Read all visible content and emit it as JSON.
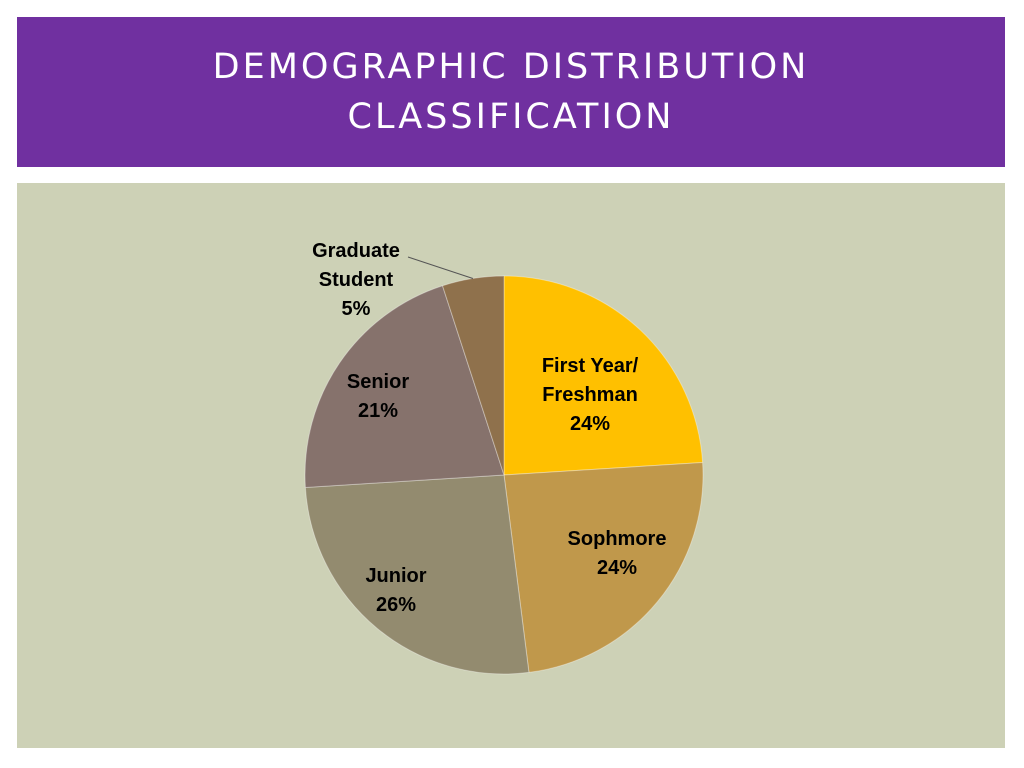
{
  "slide": {
    "title_line1": "DEMOGRAPHIC DISTRIBUTION",
    "title_line2": "CLASSIFICATION"
  },
  "colors": {
    "title_bg": "#7030A0",
    "panel_bg": "#CDD1B6"
  },
  "chart_data": {
    "type": "pie",
    "title": "",
    "slices": [
      {
        "label_lines": [
          "First Year/",
          "Freshman"
        ],
        "value": 24,
        "pct_text": "24%",
        "color": "#FFC000"
      },
      {
        "label_lines": [
          "Sophmore"
        ],
        "value": 24,
        "pct_text": "24%",
        "color": "#C0984B"
      },
      {
        "label_lines": [
          "Junior"
        ],
        "value": 26,
        "pct_text": "26%",
        "color": "#938B6F"
      },
      {
        "label_lines": [
          "Senior"
        ],
        "value": 21,
        "pct_text": "21%",
        "color": "#86726C"
      },
      {
        "label_lines": [
          "Graduate",
          "Student"
        ],
        "value": 5,
        "pct_text": "5%",
        "color": "#8F714C"
      }
    ],
    "start_angle_deg": 0,
    "direction": "clockwise",
    "legend": "none"
  }
}
